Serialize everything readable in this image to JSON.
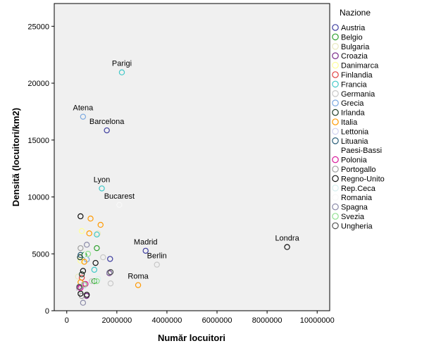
{
  "chart_data": {
    "type": "scatter",
    "title": "",
    "xlabel": "Număr locuitori",
    "ylabel": "Densită (locuitori/km2)",
    "xlim": [
      -500000,
      10500000
    ],
    "ylim": [
      0,
      27000
    ],
    "xticks": [
      0,
      2000000,
      4000000,
      6000000,
      8000000,
      10000000
    ],
    "yticks": [
      0,
      5000,
      10000,
      15000,
      20000,
      25000
    ],
    "xtick_labels": [
      "0",
      "2000000",
      "4000000",
      "6000000",
      "8000000",
      "10000000"
    ],
    "ytick_labels": [
      "0",
      "5000",
      "10000",
      "15000",
      "20000",
      "25000"
    ],
    "grid": false,
    "legend_position": "right",
    "legend_title": "Nazione",
    "series": [
      {
        "name": "Austria",
        "color": "#3c3c9e",
        "points": [
          [
            1730000,
            4550
          ],
          [
            3150000,
            5270
          ],
          [
            1600000,
            15850
          ]
        ]
      },
      {
        "name": "Belgio",
        "color": "#2ca02c",
        "points": [
          [
            1200000,
            5500
          ],
          [
            1100000,
            2600
          ],
          [
            700000,
            4900
          ]
        ]
      },
      {
        "name": "Bulgaria",
        "color": "#e8e8c0",
        "points": [
          [
            1240000,
            6800
          ],
          [
            450000,
            3000
          ]
        ]
      },
      {
        "name": "Croazia",
        "color": "#7a2c8a",
        "points": [
          [
            790000,
            1300
          ],
          [
            1700000,
            3300
          ],
          [
            500000,
            2000
          ]
        ]
      },
      {
        "name": "Danimarca",
        "color": "#ffff99",
        "points": [
          [
            600000,
            7000
          ],
          [
            550000,
            4400
          ]
        ]
      },
      {
        "name": "Finlandia",
        "color": "#e04040",
        "points": [
          [
            600000,
            2900
          ],
          [
            700000,
            2350
          ]
        ]
      },
      {
        "name": "Francia",
        "color": "#40c8c8",
        "points": [
          [
            2200000,
            20950
          ],
          [
            1400000,
            10750
          ],
          [
            1200000,
            6700
          ],
          [
            1100000,
            3600
          ]
        ]
      },
      {
        "name": "Germania",
        "color": "#c8c8c8",
        "points": [
          [
            3600000,
            4050
          ],
          [
            1750000,
            2400
          ],
          [
            1450000,
            4700
          ],
          [
            1000000,
            2600
          ],
          [
            500000,
            1800
          ]
        ]
      },
      {
        "name": "Grecia",
        "color": "#7aa8e0",
        "points": [
          [
            650000,
            17050
          ],
          [
            800000,
            4500
          ]
        ]
      },
      {
        "name": "Irlanda",
        "color": "#1e3c28",
        "points": [
          [
            530000,
            4700
          ],
          [
            600000,
            3200
          ]
        ]
      },
      {
        "name": "Italia",
        "color": "#ff9900",
        "points": [
          [
            2850000,
            2250
          ],
          [
            1350000,
            7550
          ],
          [
            950000,
            8100
          ],
          [
            900000,
            6800
          ],
          [
            700000,
            4300
          ],
          [
            550000,
            2500
          ]
        ]
      },
      {
        "name": "Lettonia",
        "color": "#d0d0f0",
        "points": [
          [
            700000,
            2200
          ]
        ]
      },
      {
        "name": "Lituania",
        "color": "#2c5f7a",
        "points": [
          [
            550000,
            4900
          ]
        ]
      },
      {
        "name": "Paesi-Bassi",
        "color": "#ffffff",
        "points": [
          [
            750000,
            4900
          ],
          [
            500000,
            1600
          ]
        ]
      },
      {
        "name": "Polonia",
        "color": "#d8189a",
        "points": [
          [
            750000,
            2350
          ],
          [
            550000,
            2000
          ]
        ]
      },
      {
        "name": "Portogallo",
        "color": "#a0a0a0",
        "points": [
          [
            550000,
            5500
          ],
          [
            600000,
            1300
          ]
        ]
      },
      {
        "name": "Regno-Unito",
        "color": "#101010",
        "points": [
          [
            8800000,
            5600
          ],
          [
            550000,
            8300
          ],
          [
            1150000,
            4200
          ],
          [
            650000,
            3500
          ],
          [
            800000,
            1400
          ],
          [
            550000,
            1500
          ]
        ]
      },
      {
        "name": "Rep.Ceca",
        "color": "#d8f0f0",
        "points": [
          [
            1250000,
            2800
          ]
        ]
      },
      {
        "name": "Romania",
        "color": "#f8f8f8",
        "points": [
          [
            2100000,
            9300
          ]
        ]
      },
      {
        "name": "Spagna",
        "color": "#8a8aa8",
        "points": [
          [
            650000,
            700
          ],
          [
            1700000,
            3350
          ],
          [
            800000,
            5800
          ]
        ]
      },
      {
        "name": "Svezia",
        "color": "#90e090",
        "points": [
          [
            850000,
            5000
          ],
          [
            1200000,
            2600
          ],
          [
            700000,
            2300
          ]
        ]
      },
      {
        "name": "Ungheria",
        "color": "#505050",
        "points": [
          [
            1750000,
            3400
          ],
          [
            500000,
            2100
          ]
        ]
      }
    ],
    "annotations": [
      {
        "text": "Parigi",
        "x": 2200000,
        "y": 20950
      },
      {
        "text": "Atena",
        "x": 650000,
        "y": 17050
      },
      {
        "text": "Barcelona",
        "x": 1600000,
        "y": 15850
      },
      {
        "text": "Lyon",
        "x": 1400000,
        "y": 10750
      },
      {
        "text": "Bucarest",
        "x": 2100000,
        "y": 9300
      },
      {
        "text": "Madrid",
        "x": 3150000,
        "y": 5270
      },
      {
        "text": "Berlin",
        "x": 3600000,
        "y": 4050
      },
      {
        "text": "Roma",
        "x": 2850000,
        "y": 2250
      },
      {
        "text": "Londra",
        "x": 8800000,
        "y": 5600
      }
    ]
  }
}
